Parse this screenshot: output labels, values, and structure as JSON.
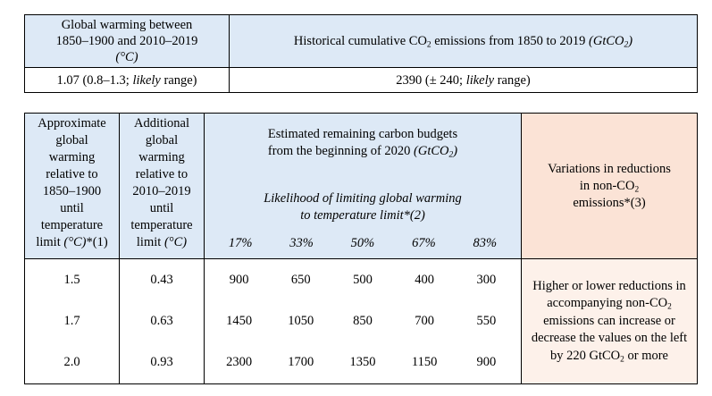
{
  "top_table": {
    "header_left_line1": "Global warming between",
    "header_left_line2": "1850–1900 and 2010–2019",
    "header_left_unit": "(°C)",
    "header_right_main": "Historical cumulative CO",
    "header_right_sub": "2",
    "header_right_rest": " emissions from 1850 to 2019 ",
    "header_right_unit": "(GtCO",
    "header_right_unit_sub": "2",
    "header_right_unit_end": ")",
    "value_left_main": "1.07 (0.8–1.3; ",
    "value_left_italic": "likely",
    "value_left_end": " range)",
    "value_right_main": "2390 (± 240; ",
    "value_right_italic": "likely",
    "value_right_end": " range)"
  },
  "bottom_table": {
    "col1_header": [
      "Approximate",
      "global",
      "warming",
      "relative to",
      "1850–1900",
      "until",
      "temperature"
    ],
    "col1_header_last": "limit ",
    "col1_header_last_italic": "(°C)",
    "col1_header_last_end": "*(1)",
    "col2_header": [
      "Additional",
      "global",
      "warming",
      "relative to",
      "2010–2019",
      "until",
      "temperature"
    ],
    "col2_header_last": "limit ",
    "col2_header_last_italic": "(°C)",
    "budget_title_line1": "Estimated remaining carbon budgets",
    "budget_title_line2": "from the beginning of 2020 ",
    "budget_title_unit": "(GtCO",
    "budget_title_unit_sub": "2",
    "budget_title_unit_end": ")",
    "likelihood_line1": "Likelihood of limiting global warming",
    "likelihood_line2": "to temperature limit*(2)",
    "percentiles": [
      "17%",
      "33%",
      "50%",
      "67%",
      "83%"
    ],
    "variation_header_line1": "Variations in reductions",
    "variation_header_line2": "in non-CO",
    "variation_header_sub": "2",
    "variation_header_line3": "emissions*(3)",
    "rows": [
      {
        "warming": "1.5",
        "additional": "0.43",
        "budgets": [
          "900",
          "650",
          "500",
          "400",
          "300"
        ]
      },
      {
        "warming": "1.7",
        "additional": "0.63",
        "budgets": [
          "1450",
          "1050",
          "850",
          "700",
          "550"
        ]
      },
      {
        "warming": "2.0",
        "additional": "0.93",
        "budgets": [
          "2300",
          "1700",
          "1350",
          "1150",
          "900"
        ]
      }
    ],
    "variation_text_part1": "Higher or lower reductions in accompanying non-CO",
    "variation_text_sub": "2",
    "variation_text_part2": " emissions can increase or decrease the values on the left by 220 GtCO",
    "variation_text_sub2": "2",
    "variation_text_part3": " or more"
  }
}
